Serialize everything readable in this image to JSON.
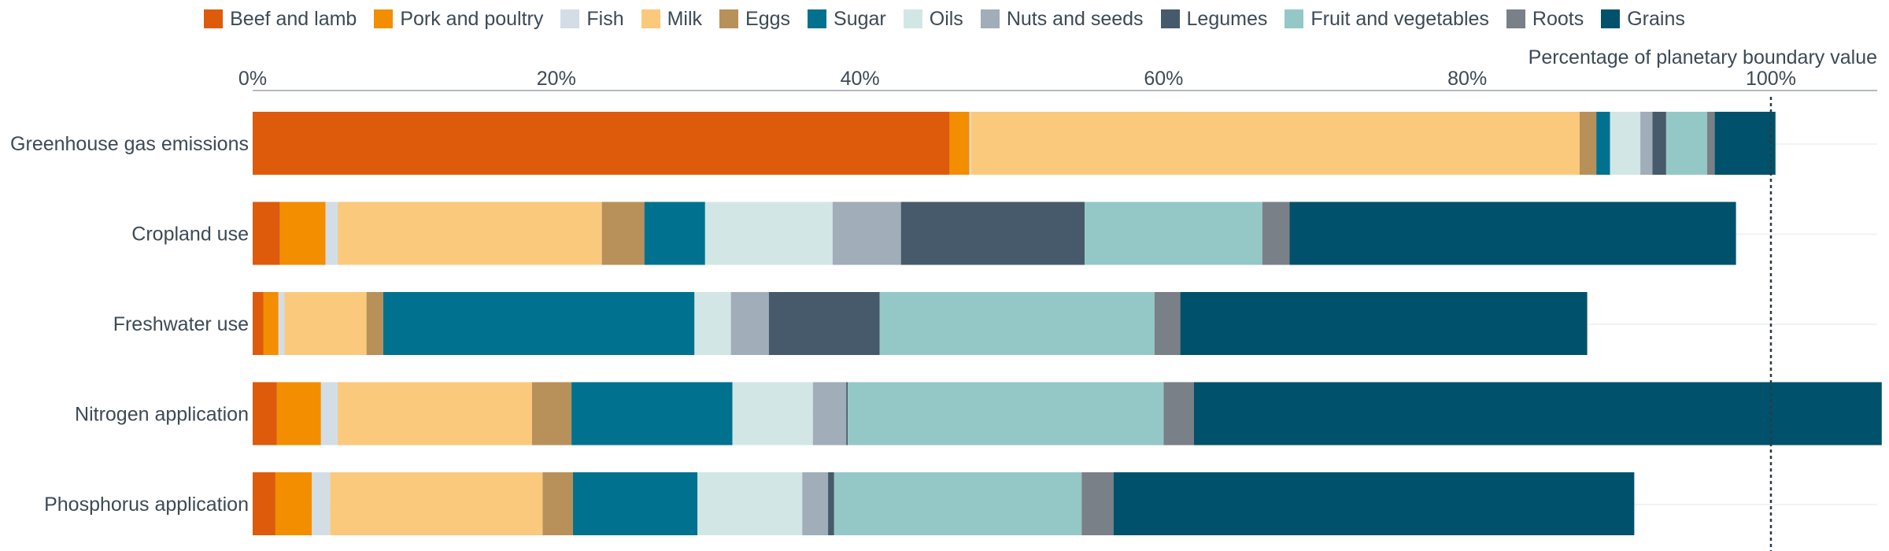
{
  "chart_data": {
    "type": "bar",
    "orientation": "horizontal",
    "stacked": true,
    "xlabel": "Percentage of planetary boundary value",
    "xlim": [
      0,
      107
    ],
    "xticks": [
      0,
      20,
      40,
      60,
      80,
      100
    ],
    "xtick_labels": [
      "0%",
      "20%",
      "40%",
      "60%",
      "80%",
      "100%"
    ],
    "reference_line": 100,
    "grid": true,
    "legend_position": "top",
    "categories": [
      "Greenhouse gas emissions",
      "Cropland use",
      "Freshwater use",
      "Nitrogen application",
      "Phosphorus application"
    ],
    "series": [
      {
        "name": "Beef and lamb",
        "color": "#dd5b0b",
        "values": [
          45.9,
          1.8,
          0.7,
          1.6,
          1.5
        ]
      },
      {
        "name": "Pork and poultry",
        "color": "#f28e00",
        "values": [
          1.3,
          3.0,
          1.0,
          2.9,
          2.4
        ]
      },
      {
        "name": "Fish",
        "color": "#d3dde6",
        "values": [
          0.1,
          0.8,
          0.4,
          1.1,
          1.2
        ]
      },
      {
        "name": "Milk",
        "color": "#fbc97c",
        "values": [
          40.1,
          17.4,
          5.4,
          12.8,
          14.0
        ]
      },
      {
        "name": "Eggs",
        "color": "#b8905a",
        "values": [
          1.1,
          2.8,
          1.1,
          2.6,
          2.0
        ]
      },
      {
        "name": "Sugar",
        "color": "#00718f",
        "values": [
          0.9,
          4.0,
          20.5,
          10.6,
          8.2
        ]
      },
      {
        "name": "Oils",
        "color": "#d2e6e5",
        "values": [
          2.0,
          8.4,
          2.4,
          5.3,
          6.9
        ]
      },
      {
        "name": "Nuts and seeds",
        "color": "#a1adb8",
        "values": [
          0.8,
          4.5,
          2.5,
          2.2,
          1.7
        ]
      },
      {
        "name": "Legumes",
        "color": "#465a6b",
        "values": [
          0.9,
          12.1,
          7.3,
          0.1,
          0.4
        ]
      },
      {
        "name": "Fruit and vegetables",
        "color": "#94c8c7",
        "values": [
          2.7,
          11.7,
          18.1,
          20.8,
          16.3
        ]
      },
      {
        "name": "Roots",
        "color": "#7a8088",
        "values": [
          0.5,
          1.8,
          1.7,
          2.0,
          2.1
        ]
      },
      {
        "name": "Grains",
        "color": "#00516b",
        "values": [
          4.0,
          29.4,
          26.8,
          45.3,
          34.3
        ]
      }
    ]
  }
}
